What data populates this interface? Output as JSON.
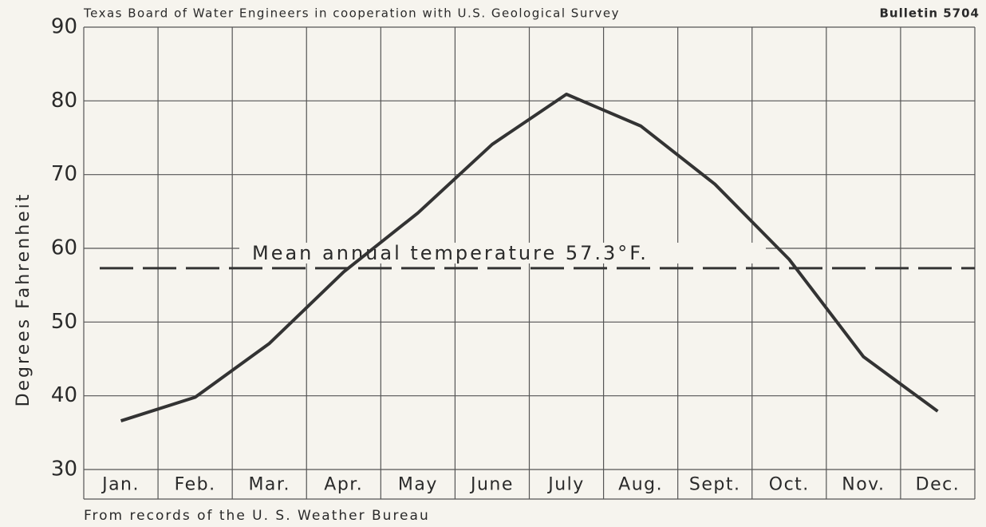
{
  "chart_data": {
    "type": "line",
    "header": "Texas Board of Water Engineers in cooperation with U.S. Geological Survey",
    "bulletin": "Bulletin 5704",
    "y_label": "Degrees Fahrenheit",
    "annotation": "Mean annual temperature 57.3°F.",
    "mean": 57.3,
    "footer": "From records of the U. S. Weather Bureau",
    "categories": [
      "Jan.",
      "Feb.",
      "Mar.",
      "Apr.",
      "May",
      "June",
      "July",
      "Aug.",
      "Sept.",
      "Oct.",
      "Nov.",
      "Dec."
    ],
    "values": [
      36.6,
      39.8,
      47.1,
      56.8,
      64.8,
      74.1,
      80.9,
      76.6,
      68.7,
      58.5,
      45.3,
      37.9
    ],
    "color": "#333333",
    "ylim": [
      30,
      90
    ],
    "yticks": [
      30,
      40,
      50,
      60,
      70,
      80,
      90
    ],
    "grid": true
  }
}
